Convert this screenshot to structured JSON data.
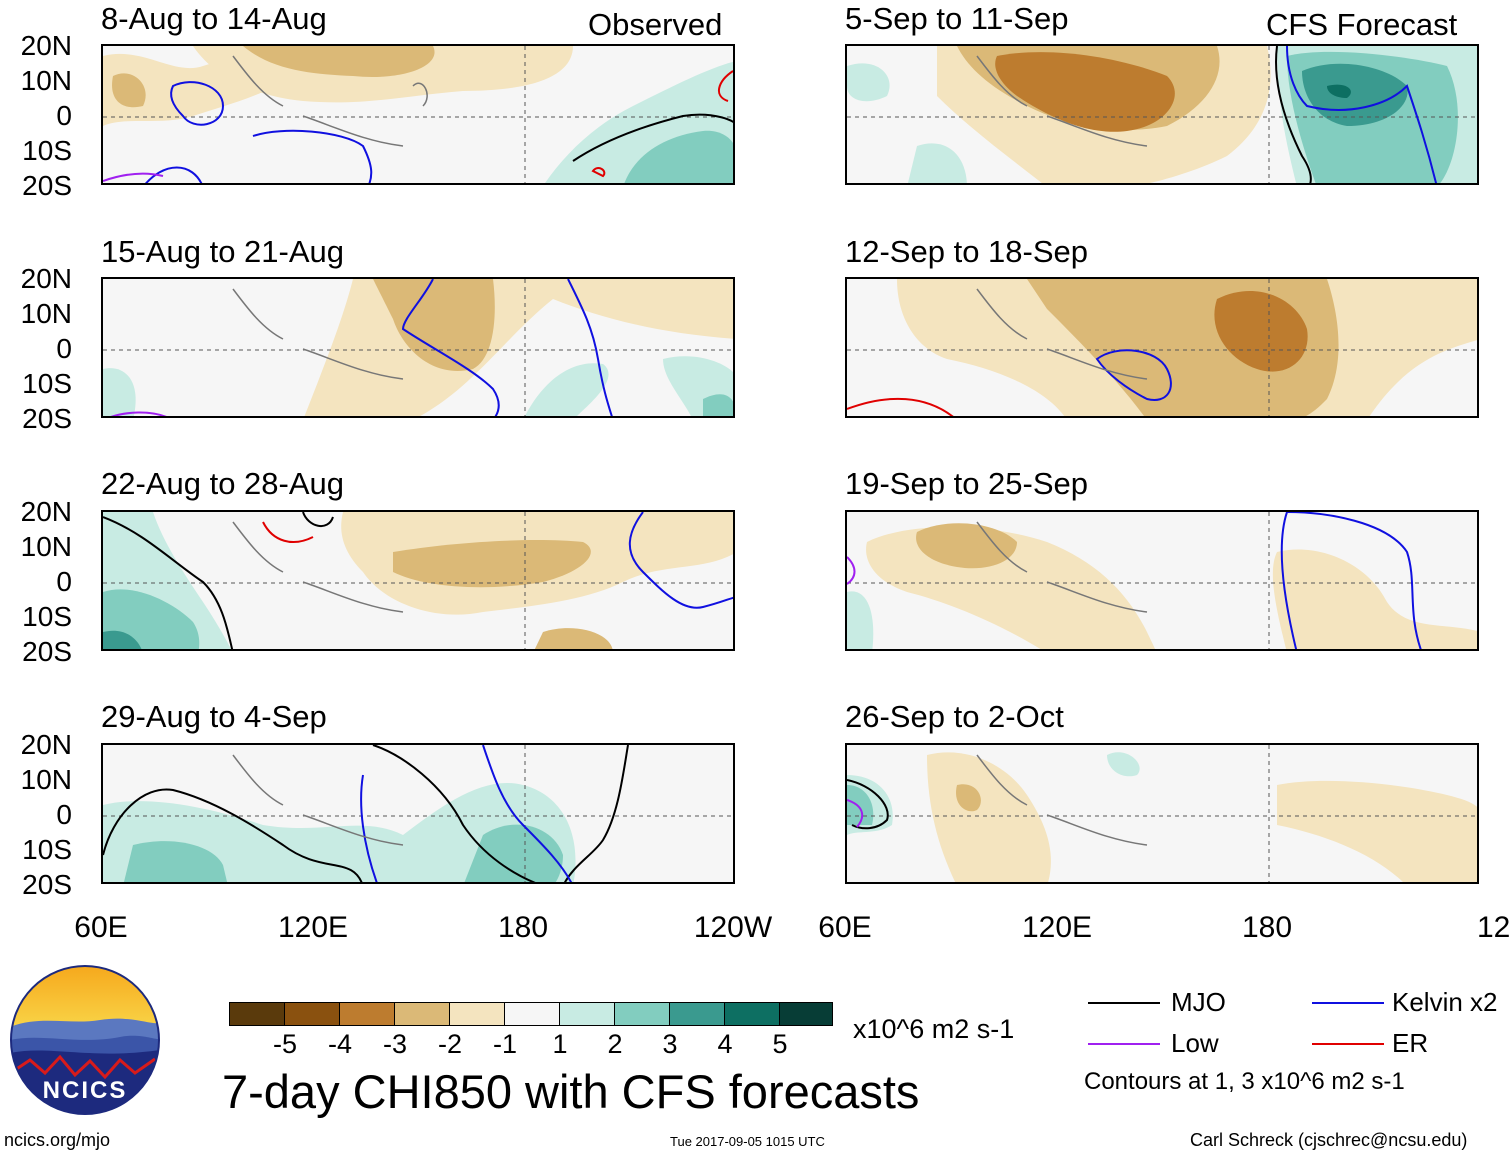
{
  "figure_title": "7-day CHI850 with CFS forecasts",
  "left_header": "Observed",
  "right_header": "CFS Forecast",
  "lat_labels": [
    "20N",
    "10N",
    "0",
    "10S",
    "20S"
  ],
  "lon_labels": [
    "60E",
    "120E",
    "180",
    "120W"
  ],
  "panels_left": [
    {
      "title": "8-Aug to 14-Aug"
    },
    {
      "title": "15-Aug to 21-Aug"
    },
    {
      "title": "22-Aug to 28-Aug"
    },
    {
      "title": "29-Aug to 4-Sep"
    }
  ],
  "panels_right": [
    {
      "title": "5-Sep to 11-Sep"
    },
    {
      "title": "12-Sep to 18-Sep"
    },
    {
      "title": "19-Sep to 25-Sep"
    },
    {
      "title": "26-Sep to 2-Oct"
    }
  ],
  "colorbar": {
    "tick_labels": [
      "-5",
      "-4",
      "-3",
      "-2",
      "-1",
      "1",
      "2",
      "3",
      "4",
      "5"
    ],
    "colors": [
      "#5a3a0c",
      "#8a510f",
      "#bd7c2f",
      "#dbb977",
      "#f4e4bf",
      "#f6f6f6",
      "#c8ebe3",
      "#82cdbf",
      "#3a9a8f",
      "#0d6f62",
      "#073d36"
    ],
    "units": "x10^6 m2 s-1"
  },
  "legend": {
    "items": [
      {
        "label": "MJO",
        "color": "#000000"
      },
      {
        "label": "Kelvin x2",
        "color": "#1010e0"
      },
      {
        "label": "Low",
        "color": "#a020f0"
      },
      {
        "label": "ER",
        "color": "#e00000"
      }
    ],
    "note": "Contours at 1, 3 x10^6 m2 s-1"
  },
  "logo": {
    "text": "NCICS"
  },
  "footer": {
    "url": "ncics.org/mjo",
    "timestamp": "Tue 2017-09-05 1015 UTC",
    "credit": "Carl Schreck (cjschrec@ncsu.edu)"
  }
}
